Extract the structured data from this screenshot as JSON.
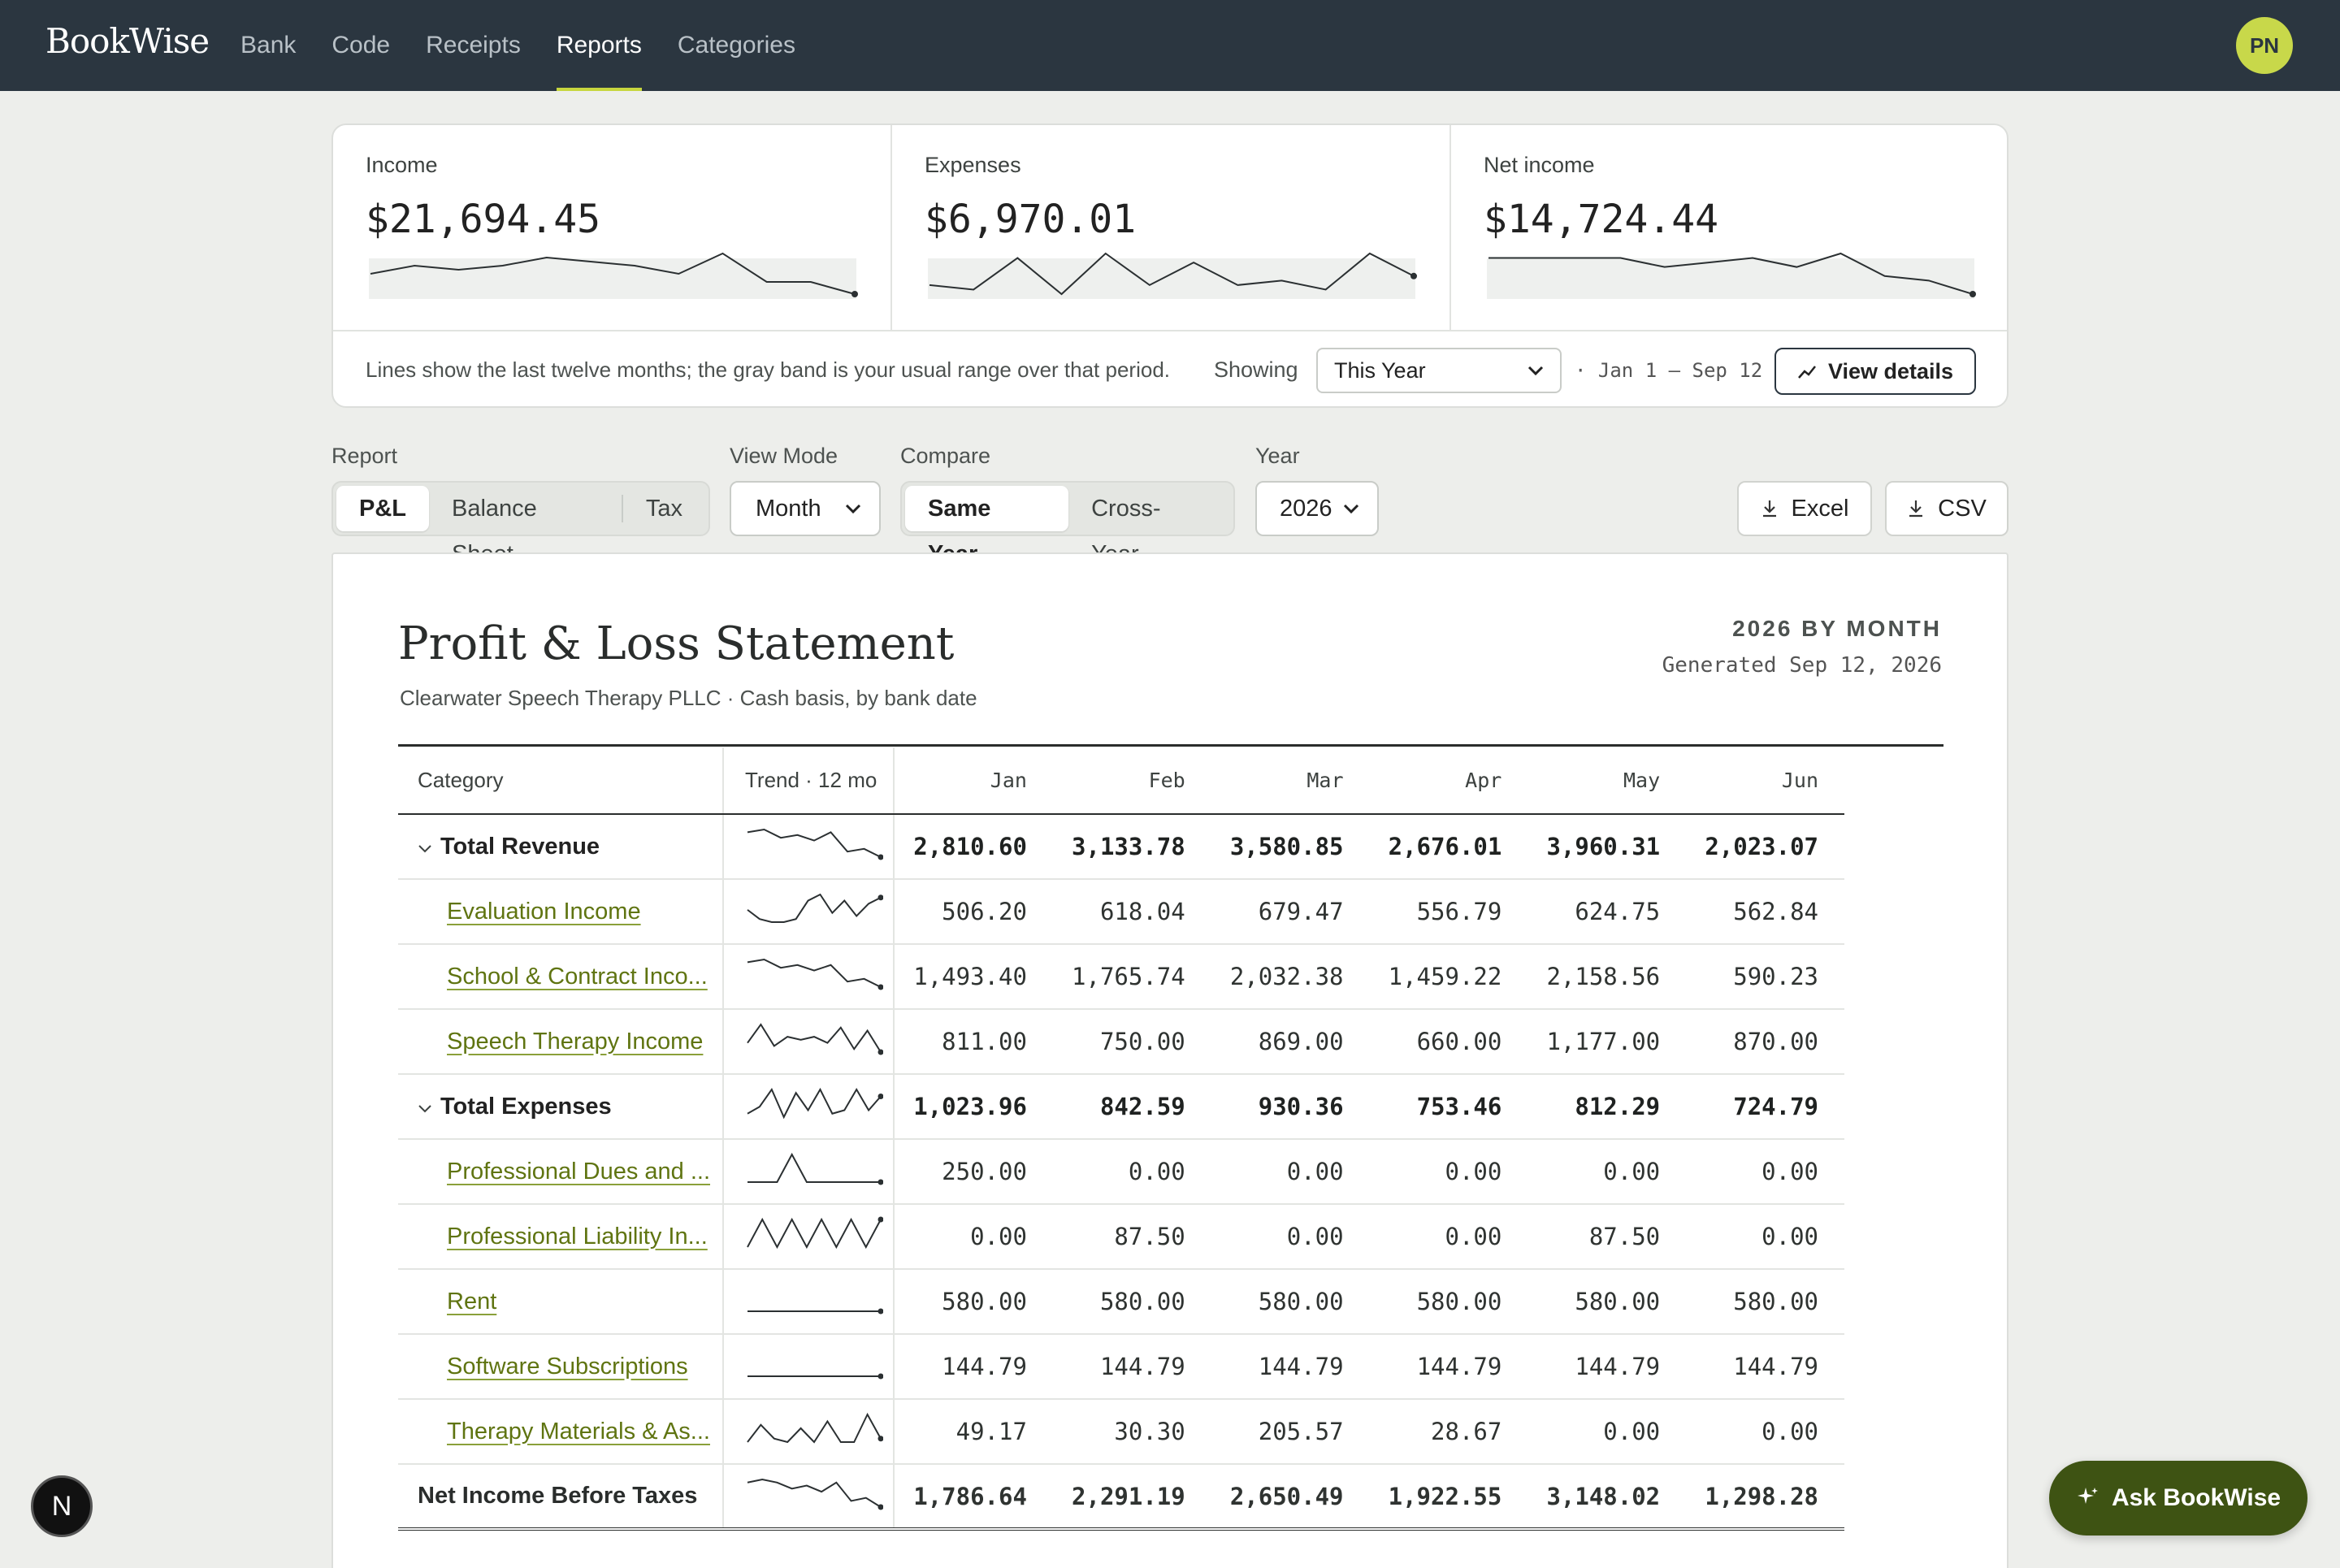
{
  "app": {
    "brand": "BookWise",
    "user_initials": "PN"
  },
  "nav": [
    {
      "label": "Bank",
      "active": false
    },
    {
      "label": "Code",
      "active": false
    },
    {
      "label": "Receipts",
      "active": false
    },
    {
      "label": "Reports",
      "active": true
    },
    {
      "label": "Categories",
      "active": false
    }
  ],
  "summary": {
    "kpis": [
      {
        "label": "Income",
        "value": "$21,694.45",
        "trend": [
          5,
          7,
          6,
          7,
          9,
          8,
          7,
          5,
          10,
          3,
          3,
          0
        ]
      },
      {
        "label": "Expenses",
        "value": "$6,970.01",
        "trend": [
          3,
          2,
          9,
          1,
          10,
          3,
          8,
          3,
          4,
          2,
          10,
          5
        ]
      },
      {
        "label": "Net income",
        "value": "$14,724.44",
        "trend": [
          8,
          8,
          8,
          8,
          6,
          7,
          8,
          6,
          9,
          4,
          3,
          0
        ]
      }
    ],
    "note": "Lines show the last twelve months; the gray band is your usual range over that period.",
    "showing_label": "Showing",
    "period": "This Year",
    "range": "· Jan 1 – Sep 12",
    "view_details": "View details"
  },
  "controls": {
    "report_label": "Report",
    "report_tabs": [
      {
        "label": "P&L",
        "active": true
      },
      {
        "label": "Balance Sheet",
        "active": false
      },
      {
        "label": "Tax",
        "active": false
      }
    ],
    "view_mode_label": "View Mode",
    "view_mode": "Month",
    "compare_label": "Compare",
    "compare_tabs": [
      {
        "label": "Same Year",
        "active": true
      },
      {
        "label": "Cross-Year",
        "active": false
      }
    ],
    "year_label": "Year",
    "year": "2026",
    "excel": "Excel",
    "csv": "CSV"
  },
  "report": {
    "title": "Profit & Loss Statement",
    "subtitle": "Clearwater Speech Therapy PLLC · Cash basis, by bank date",
    "period": "2026 BY MONTH",
    "generated": "Generated Sep 12, 2026",
    "headers": {
      "category": "Category",
      "trend": "Trend · 12 mo",
      "months": [
        "Jan",
        "Feb",
        "Mar",
        "Apr",
        "May",
        "Jun"
      ]
    },
    "rows": [
      {
        "type": "total",
        "label": "Total Revenue",
        "trend": [
          9,
          10,
          7,
          8,
          6,
          9,
          2,
          3,
          0
        ],
        "values": [
          "2,810.60",
          "3,133.78",
          "3,580.85",
          "2,676.01",
          "3,960.31",
          "2,023.07"
        ]
      },
      {
        "type": "item",
        "label": "Evaluation Income",
        "trend": [
          5,
          2,
          1,
          1,
          2,
          8,
          10,
          4,
          8,
          3,
          7,
          9
        ],
        "values": [
          "506.20",
          "618.04",
          "679.47",
          "556.79",
          "624.75",
          "562.84"
        ]
      },
      {
        "type": "item",
        "label": "School & Contract Inco...",
        "trend": [
          9,
          10,
          7,
          8,
          6,
          8,
          2,
          3,
          0
        ],
        "values": [
          "1,493.40",
          "1,765.74",
          "2,032.38",
          "1,459.22",
          "2,158.56",
          "590.23"
        ]
      },
      {
        "type": "item",
        "label": "Speech Therapy Income",
        "trend": [
          4,
          10,
          3,
          6,
          5,
          6,
          4,
          9,
          2,
          8,
          1
        ],
        "values": [
          "811.00",
          "750.00",
          "869.00",
          "660.00",
          "1,177.00",
          "870.00"
        ]
      },
      {
        "type": "total",
        "label": "Total Expenses",
        "trend": [
          2,
          4,
          9,
          1,
          8,
          3,
          9,
          2,
          3,
          9,
          3,
          7
        ],
        "values": [
          "1,023.96",
          "842.59",
          "930.36",
          "753.46",
          "812.29",
          "724.79"
        ]
      },
      {
        "type": "item",
        "label": "Professional Dues and ...",
        "trend": [
          0,
          0,
          0,
          10,
          0,
          0,
          0,
          0,
          0,
          0
        ],
        "values": [
          "250.00",
          "0.00",
          "0.00",
          "0.00",
          "0.00",
          "0.00"
        ]
      },
      {
        "type": "item",
        "label": "Professional Liability In...",
        "trend": [
          0,
          10,
          0,
          10,
          0,
          10,
          0,
          10,
          0,
          10
        ],
        "values": [
          "0.00",
          "87.50",
          "0.00",
          "0.00",
          "87.50",
          "0.00"
        ]
      },
      {
        "type": "item",
        "label": "Rent",
        "trend": [
          0,
          0,
          0,
          0,
          0,
          0,
          0,
          0
        ],
        "values": [
          "580.00",
          "580.00",
          "580.00",
          "580.00",
          "580.00",
          "580.00"
        ]
      },
      {
        "type": "item",
        "label": "Software Subscriptions",
        "trend": [
          0,
          0,
          0,
          0,
          0,
          0,
          0,
          0
        ],
        "values": [
          "144.79",
          "144.79",
          "144.79",
          "144.79",
          "144.79",
          "144.79"
        ]
      },
      {
        "type": "item",
        "label": "Therapy Materials & As...",
        "trend": [
          1,
          6,
          2,
          1,
          5,
          1,
          7,
          1,
          1,
          9,
          2
        ],
        "values": [
          "49.17",
          "30.30",
          "205.57",
          "28.67",
          "0.00",
          "0.00"
        ]
      },
      {
        "type": "net",
        "label": "Net Income Before Taxes",
        "trend": [
          8,
          9,
          8,
          6,
          7,
          5,
          8,
          2,
          3,
          0
        ],
        "values": [
          "1,786.64",
          "2,291.19",
          "2,650.49",
          "1,922.55",
          "3,148.02",
          "1,298.28"
        ]
      }
    ]
  },
  "ask": "Ask BookWise",
  "badge": "N",
  "colors": {
    "nav_bg": "#2b3640",
    "accent": "#c8d84a",
    "link": "#5f7411",
    "ask_bg": "#3e5313"
  }
}
